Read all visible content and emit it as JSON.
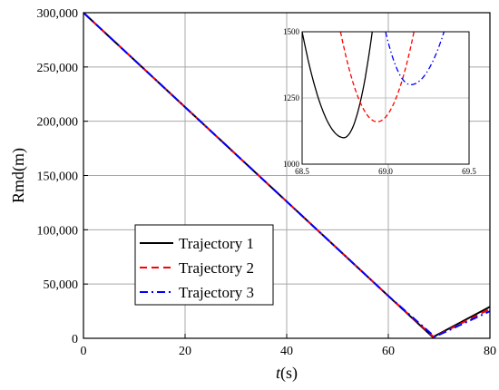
{
  "chart_data": {
    "type": "line",
    "title": "",
    "xlabel_italic": "t",
    "xlabel_unit": "(s)",
    "ylabel": "Rmd(m)",
    "xlim": [
      0,
      80
    ],
    "ylim": [
      0,
      300000
    ],
    "xticks": [
      0,
      20,
      40,
      60,
      80
    ],
    "yticks": [
      0,
      50000,
      100000,
      150000,
      200000,
      250000,
      300000
    ],
    "ytick_labels": [
      "0",
      "50,000",
      "100,000",
      "150,000",
      "200,000",
      "250,000",
      "300,000"
    ],
    "grid": true,
    "legend_position": "lower-left",
    "series": [
      {
        "name": "Trajectory 1",
        "color": "#000000",
        "dash": "solid",
        "points": [
          [
            0,
            300000
          ],
          [
            20,
            213000
          ],
          [
            40,
            126000
          ],
          [
            60,
            39000
          ],
          [
            68.75,
            1100
          ],
          [
            80,
            29000
          ]
        ]
      },
      {
        "name": "Trajectory 2",
        "color": "#ff0000",
        "dash": "dashed",
        "points": [
          [
            0,
            300000
          ],
          [
            20,
            213000
          ],
          [
            40,
            126000
          ],
          [
            60,
            39000
          ],
          [
            68.95,
            1160
          ],
          [
            80,
            27000
          ]
        ]
      },
      {
        "name": "Trajectory 3",
        "color": "#0000ff",
        "dash": "dashdot",
        "points": [
          [
            0,
            300000
          ],
          [
            20,
            213000
          ],
          [
            40,
            126000
          ],
          [
            60,
            39000
          ],
          [
            69.15,
            1300
          ],
          [
            80,
            25000
          ]
        ]
      }
    ],
    "inset": {
      "xlim": [
        68.5,
        69.5
      ],
      "ylim": [
        1000,
        1500
      ],
      "xticks": [
        68.5,
        69.0,
        69.5
      ],
      "xtick_labels": [
        "68.5",
        "69.0",
        "69.5"
      ],
      "yticks": [
        1000,
        1250,
        1500
      ],
      "ytick_labels": [
        "1000",
        "1250",
        "1500"
      ],
      "grid": true,
      "series": [
        {
          "name": "Trajectory 1",
          "min_t": 68.75,
          "min_r": 1100,
          "left_t": 68.5,
          "right_t": 68.92
        },
        {
          "name": "Trajectory 2",
          "min_t": 68.95,
          "min_r": 1160,
          "left_t": 68.73,
          "right_t": 69.17
        },
        {
          "name": "Trajectory 3",
          "min_t": 69.15,
          "min_r": 1300,
          "left_t": 69.0,
          "right_t": 69.35
        }
      ]
    }
  }
}
